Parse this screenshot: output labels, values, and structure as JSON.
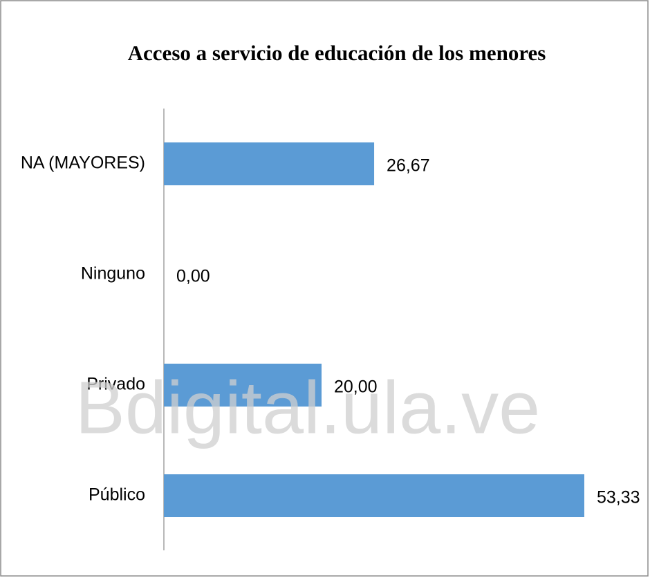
{
  "chart_data": {
    "type": "bar",
    "orientation": "horizontal",
    "title": "Acceso a servicio de educación de los menores",
    "categories": [
      "NA (MAYORES)",
      "Ninguno",
      "Privado",
      "Público"
    ],
    "values": [
      26.67,
      0,
      20,
      53.33
    ],
    "value_labels": [
      "26,67",
      "0,00",
      "20,00",
      "53,33"
    ],
    "color": "#5b9bd5",
    "watermark": "Bdigital.ula.ve"
  }
}
